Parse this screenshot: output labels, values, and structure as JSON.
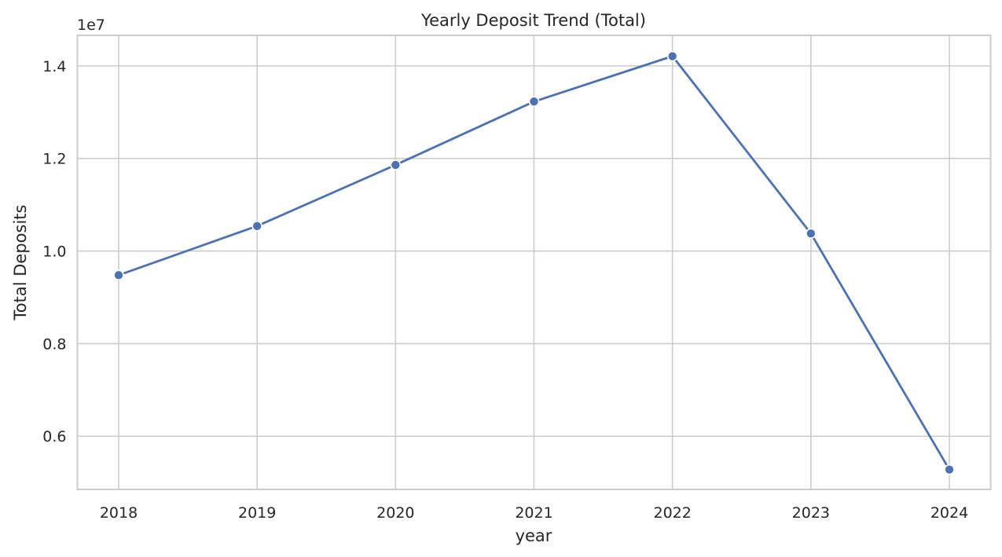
{
  "chart_data": {
    "type": "line",
    "title": "Yearly Deposit Trend (Total)",
    "xlabel": "year",
    "ylabel": "Total Deposits",
    "y_offset_label": "1e7",
    "categories": [
      "2018",
      "2019",
      "2020",
      "2021",
      "2022",
      "2023",
      "2024"
    ],
    "series": [
      {
        "values": [
          9480000,
          10540000,
          11860000,
          13230000,
          14210000,
          10380000,
          5280000
        ]
      }
    ],
    "yticks": [
      0.6,
      0.8,
      1.0,
      1.2,
      1.4
    ],
    "ytick_labels": [
      "0.6",
      "0.8",
      "1.0",
      "1.2",
      "1.4"
    ],
    "ylim": [
      4850000,
      14660000
    ],
    "grid": true,
    "marker": "circle",
    "line_color": "#4c72b0",
    "grid_color": "#cccccc"
  }
}
